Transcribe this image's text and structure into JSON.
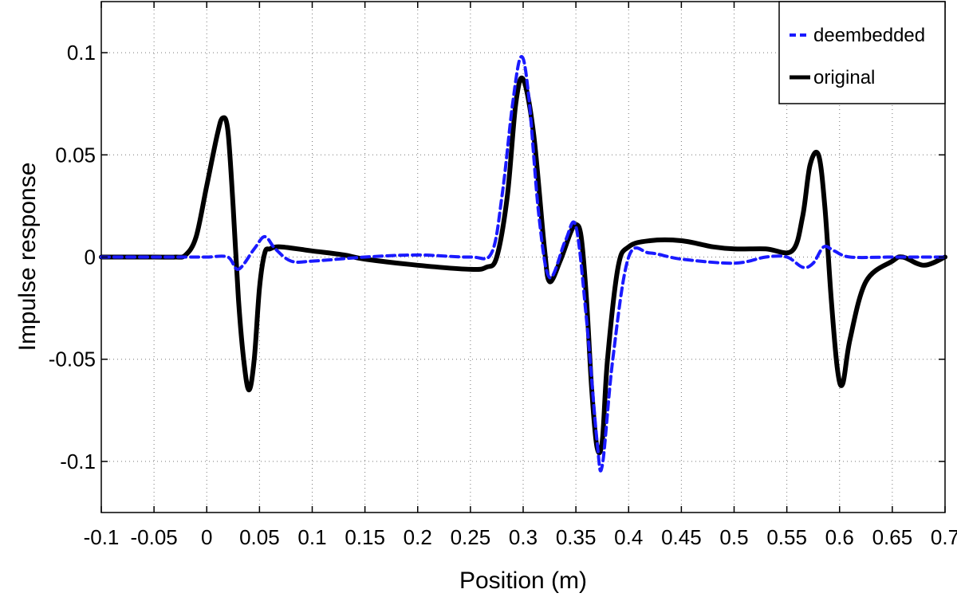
{
  "chart_data": {
    "type": "line",
    "xlabel": "Position (m)",
    "ylabel": "Impulse response",
    "xlim": [
      -0.1,
      0.7
    ],
    "ylim": [
      -0.125,
      0.125
    ],
    "grid": true,
    "grid_style": "dotted",
    "legend_position": "top-right",
    "x_ticks": [
      -0.1,
      -0.05,
      0,
      0.05,
      0.1,
      0.15,
      0.2,
      0.25,
      0.3,
      0.35,
      0.4,
      0.45,
      0.5,
      0.55,
      0.6,
      0.65,
      0.7
    ],
    "x_tick_labels": [
      "-0.1",
      "-0.05",
      "0",
      "0.05",
      "0.1",
      "0.15",
      "0.2",
      "0.25",
      "0.3",
      "0.35",
      "0.4",
      "0.45",
      "0.5",
      "0.55",
      "0.6",
      "0.65",
      "0.7"
    ],
    "y_ticks": [
      -0.1,
      -0.05,
      0,
      0.05,
      0.1
    ],
    "y_tick_labels": [
      "-0.1",
      "-0.05",
      "0",
      "0.05",
      "0.1"
    ],
    "series": [
      {
        "name": "deembedded",
        "color": "#1a1aff",
        "style": "dashed",
        "x": [
          -0.1,
          -0.05,
          -0.02,
          0.0,
          0.02,
          0.03,
          0.045,
          0.055,
          0.065,
          0.08,
          0.1,
          0.15,
          0.2,
          0.25,
          0.27,
          0.28,
          0.29,
          0.298,
          0.305,
          0.315,
          0.325,
          0.34,
          0.35,
          0.36,
          0.37,
          0.375,
          0.385,
          0.4,
          0.42,
          0.45,
          0.5,
          0.53,
          0.55,
          0.565,
          0.575,
          0.585,
          0.595,
          0.61,
          0.65,
          0.7
        ],
        "y": [
          0.0,
          0.0,
          0.0,
          0.0,
          0.0,
          -0.006,
          0.004,
          0.01,
          0.004,
          -0.002,
          -0.002,
          0.0,
          0.001,
          0.0,
          0.002,
          0.03,
          0.075,
          0.098,
          0.08,
          0.02,
          -0.01,
          0.008,
          0.015,
          -0.03,
          -0.09,
          -0.102,
          -0.05,
          0.0,
          0.002,
          -0.001,
          -0.003,
          0.0,
          0.0,
          -0.005,
          -0.003,
          0.005,
          0.003,
          0.0,
          0.0,
          0.0
        ]
      },
      {
        "name": "original",
        "color": "#000000",
        "style": "solid",
        "x": [
          -0.1,
          -0.05,
          -0.03,
          -0.02,
          -0.01,
          0.0,
          0.01,
          0.015,
          0.02,
          0.025,
          0.03,
          0.035,
          0.04,
          0.045,
          0.05,
          0.055,
          0.06,
          0.07,
          0.1,
          0.13,
          0.15,
          0.2,
          0.25,
          0.265,
          0.275,
          0.285,
          0.293,
          0.3,
          0.31,
          0.32,
          0.325,
          0.335,
          0.345,
          0.35,
          0.355,
          0.36,
          0.365,
          0.37,
          0.375,
          0.38,
          0.39,
          0.4,
          0.42,
          0.45,
          0.48,
          0.5,
          0.53,
          0.555,
          0.565,
          0.572,
          0.58,
          0.586,
          0.592,
          0.598,
          0.603,
          0.61,
          0.625,
          0.65,
          0.66,
          0.68,
          0.7
        ],
        "y": [
          0.0,
          0.0,
          0.0,
          0.001,
          0.01,
          0.035,
          0.06,
          0.068,
          0.062,
          0.025,
          -0.02,
          -0.05,
          -0.065,
          -0.05,
          -0.015,
          0.002,
          0.004,
          0.005,
          0.003,
          0.001,
          -0.001,
          -0.004,
          -0.006,
          -0.005,
          0.0,
          0.03,
          0.075,
          0.087,
          0.06,
          0.005,
          -0.012,
          -0.002,
          0.012,
          0.016,
          0.01,
          -0.02,
          -0.065,
          -0.093,
          -0.09,
          -0.05,
          -0.005,
          0.005,
          0.008,
          0.008,
          0.005,
          0.004,
          0.004,
          0.003,
          0.02,
          0.045,
          0.05,
          0.025,
          -0.02,
          -0.055,
          -0.062,
          -0.04,
          -0.012,
          -0.002,
          0.0,
          -0.004,
          0.0
        ]
      }
    ]
  }
}
